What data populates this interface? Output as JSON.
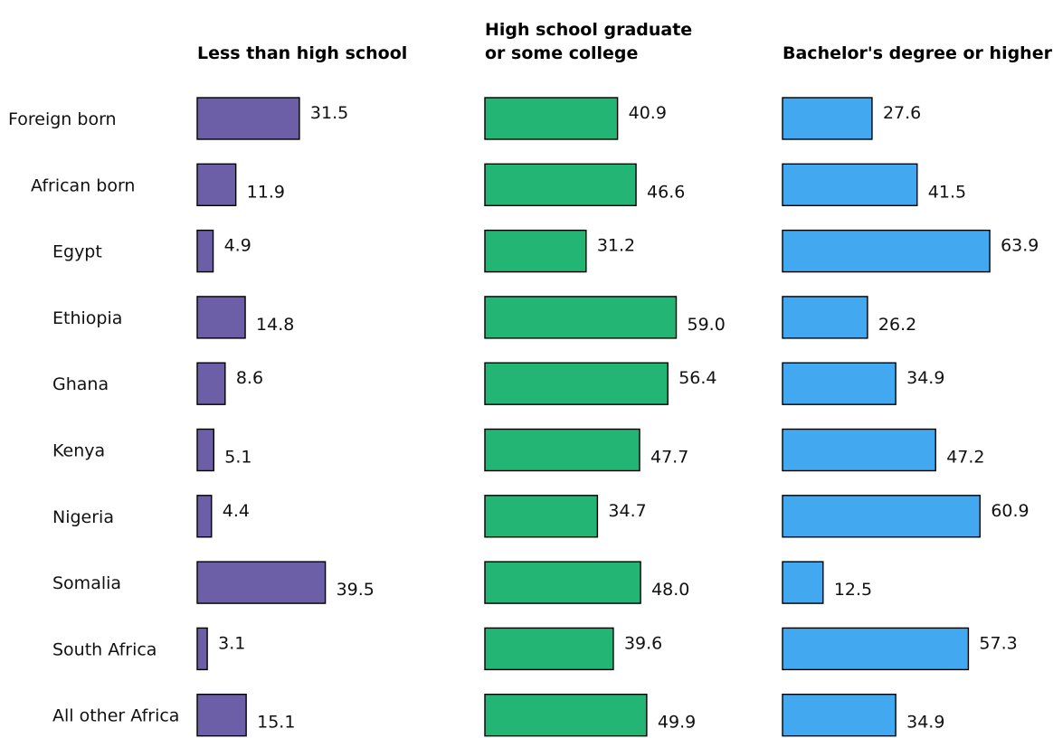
{
  "chart_data": {
    "type": "bar",
    "orientation": "horizontal",
    "layout": "small-multiples",
    "categories": [
      "Foreign born",
      "African born",
      "Egypt",
      "Ethiopia",
      "Ghana",
      "Kenya",
      "Nigeria",
      "Somalia",
      "South Africa",
      "All other Africa"
    ],
    "category_indent": [
      0,
      1,
      2,
      2,
      2,
      2,
      2,
      2,
      2,
      2
    ],
    "panels": [
      {
        "title_lines": [
          "Less than high school"
        ],
        "color": "#6c5fa7",
        "values": [
          31.5,
          11.9,
          4.9,
          14.8,
          8.6,
          5.1,
          4.4,
          39.5,
          3.1,
          15.1
        ]
      },
      {
        "title_lines": [
          "High school graduate",
          "or some college"
        ],
        "color": "#23b574",
        "values": [
          40.9,
          46.6,
          31.2,
          59.0,
          56.4,
          47.7,
          34.7,
          48.0,
          39.6,
          49.9
        ]
      },
      {
        "title_lines": [
          "Bachelor's degree or higher"
        ],
        "color": "#42a8f0",
        "values": [
          27.6,
          41.5,
          63.9,
          26.2,
          34.9,
          47.2,
          60.9,
          12.5,
          57.3,
          34.9
        ]
      }
    ],
    "value_format": "0.0",
    "grid": false,
    "legend": "none"
  }
}
